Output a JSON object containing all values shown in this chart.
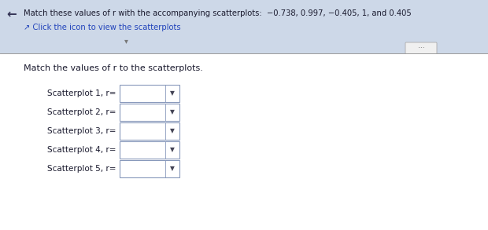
{
  "title_line1": "Match these values of r with the accompanying scatterplots:  −0.738, 0.997, −0.405, 1, and 0.405",
  "title_line2": "Click the icon to view the scatterplots",
  "subtitle": "Match the values of r to the scatterplots.",
  "rows": [
    "Scatterplot 1, r=",
    "Scatterplot 2, r=",
    "Scatterplot 3, r=",
    "Scatterplot 4, r=",
    "Scatterplot 5, r="
  ],
  "top_bg": "#cdd8e8",
  "bottom_bg": "#e8ecf0",
  "text_color": "#1a1a2e",
  "link_color": "#2244bb",
  "separator_color": "#999999",
  "box_border": "#8899bb",
  "arrow_color": "#333355",
  "btn_bg": "#f5f5f5"
}
